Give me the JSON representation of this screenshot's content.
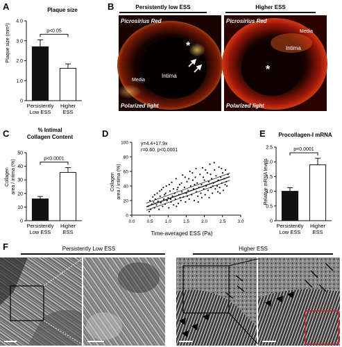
{
  "panels": {
    "A": {
      "letter": "A",
      "title": "Plaque size",
      "ylabel": "Plaque size (mm²)",
      "pvalue": "p<0.05",
      "chart_data": {
        "type": "bar",
        "categories": [
          "Persistently Low ESS",
          "Higher ESS"
        ],
        "category_lines": [
          [
            "Persistently",
            "Low ESS"
          ],
          [
            "Higher",
            "ESS"
          ]
        ],
        "values": [
          2.7,
          1.62
        ],
        "errors": [
          0.35,
          0.22
        ],
        "ylim": [
          0,
          4
        ],
        "yticks": [
          "0",
          "1.0",
          "2.0",
          "3.0",
          "4.0"
        ],
        "colors": [
          "#111111",
          "#ffffff"
        ]
      }
    },
    "B": {
      "letter": "B",
      "headers": [
        "Persistently low ESS",
        "Higher ESS"
      ],
      "left": {
        "stain": "Picrosirius Red",
        "light": "Polarized light",
        "media": "Media",
        "intima": "Intima",
        "star": "*"
      },
      "right": {
        "stain": "Picrosirius Red",
        "light": "Polarized light",
        "media": "Media",
        "intima": "Intima",
        "star": "*"
      }
    },
    "C": {
      "letter": "C",
      "title_lines": [
        "% Intimal",
        "Collagen Content"
      ],
      "ylabel_lines": [
        "Collagen",
        "area / intima (%)"
      ],
      "pvalue": "p<0.0001",
      "chart_data": {
        "type": "bar",
        "categories": [
          "Persistently Low ESS",
          "Higher ESS"
        ],
        "category_lines": [
          [
            "Persistently",
            "Low ESS"
          ],
          [
            "Higher",
            "ESS"
          ]
        ],
        "values": [
          16,
          35.5
        ],
        "errors": [
          1.8,
          3.5
        ],
        "ylim": [
          0,
          50
        ],
        "yticks": [
          "0",
          "10",
          "20",
          "30",
          "40",
          "50"
        ],
        "colors": [
          "#111111",
          "#ffffff"
        ]
      }
    },
    "D": {
      "letter": "D",
      "equation": "y=4.4+17.9x",
      "stats": "r=0.60, p<0.0001",
      "ylabel_lines": [
        "Collagen",
        "area / intima (%)"
      ],
      "xlabel": "Time-averaged ESS (Pa)",
      "chart_data": {
        "type": "scatter",
        "xlim": [
          0,
          3.0
        ],
        "ylim": [
          0,
          100
        ],
        "xticks": [
          "0.0",
          "0.5",
          "1.0",
          "1.5",
          "2.0",
          "2.5",
          "3.0"
        ],
        "yticks": [
          "0",
          "20",
          "40",
          "60",
          "80",
          "100"
        ],
        "regression": {
          "intercept": 4.4,
          "slope": 17.9
        },
        "points": [
          [
            0.45,
            12
          ],
          [
            0.5,
            20
          ],
          [
            0.52,
            8
          ],
          [
            0.55,
            15
          ],
          [
            0.58,
            25
          ],
          [
            0.6,
            18
          ],
          [
            0.62,
            10
          ],
          [
            0.65,
            22
          ],
          [
            0.68,
            14
          ],
          [
            0.7,
            30
          ],
          [
            0.72,
            19
          ],
          [
            0.75,
            8
          ],
          [
            0.78,
            26
          ],
          [
            0.8,
            17
          ],
          [
            0.82,
            35
          ],
          [
            0.85,
            12
          ],
          [
            0.88,
            22
          ],
          [
            0.9,
            28
          ],
          [
            0.92,
            15
          ],
          [
            0.95,
            40
          ],
          [
            0.97,
            20
          ],
          [
            1.0,
            24
          ],
          [
            1.02,
            10
          ],
          [
            1.05,
            33
          ],
          [
            1.08,
            18
          ],
          [
            1.1,
            45
          ],
          [
            1.12,
            26
          ],
          [
            1.15,
            14
          ],
          [
            1.18,
            30
          ],
          [
            1.2,
            22
          ],
          [
            1.22,
            50
          ],
          [
            1.25,
            35
          ],
          [
            1.28,
            16
          ],
          [
            1.3,
            28
          ],
          [
            1.32,
            42
          ],
          [
            1.35,
            20
          ],
          [
            1.38,
            32
          ],
          [
            1.4,
            55
          ],
          [
            1.42,
            25
          ],
          [
            1.45,
            38
          ],
          [
            1.48,
            18
          ],
          [
            1.5,
            30
          ],
          [
            1.52,
            46
          ],
          [
            1.55,
            34
          ],
          [
            1.58,
            22
          ],
          [
            1.6,
            60
          ],
          [
            1.62,
            40
          ],
          [
            1.65,
            28
          ],
          [
            1.68,
            48
          ],
          [
            1.7,
            36
          ],
          [
            1.72,
            20
          ],
          [
            1.75,
            52
          ],
          [
            1.78,
            32
          ],
          [
            1.8,
            44
          ],
          [
            1.82,
            26
          ],
          [
            1.85,
            38
          ],
          [
            1.88,
            56
          ],
          [
            1.9,
            30
          ],
          [
            1.92,
            42
          ],
          [
            1.95,
            65
          ],
          [
            1.98,
            36
          ],
          [
            2.0,
            48
          ],
          [
            2.02,
            28
          ],
          [
            2.05,
            40
          ],
          [
            2.08,
            58
          ],
          [
            2.1,
            34
          ],
          [
            2.12,
            46
          ],
          [
            2.15,
            70
          ],
          [
            2.18,
            38
          ],
          [
            2.2,
            50
          ],
          [
            2.22,
            30
          ],
          [
            2.25,
            44
          ],
          [
            2.28,
            62
          ],
          [
            2.3,
            36
          ],
          [
            2.32,
            54
          ],
          [
            2.35,
            40
          ],
          [
            2.38,
            48
          ],
          [
            2.4,
            66
          ],
          [
            2.42,
            38
          ],
          [
            2.45,
            52
          ],
          [
            2.48,
            44
          ],
          [
            2.5,
            58
          ],
          [
            2.52,
            34
          ],
          [
            2.55,
            50
          ],
          [
            2.58,
            62
          ],
          [
            2.6,
            46
          ],
          [
            2.62,
            40
          ],
          [
            2.65,
            56
          ],
          [
            0.48,
            5
          ],
          [
            0.63,
            28
          ],
          [
            0.77,
            33
          ],
          [
            0.93,
            30
          ],
          [
            1.07,
            22
          ],
          [
            1.23,
            12
          ],
          [
            1.37,
            44
          ],
          [
            1.53,
            26
          ],
          [
            1.67,
            58
          ],
          [
            1.83,
            18
          ],
          [
            1.97,
            52
          ],
          [
            2.13,
            24
          ],
          [
            2.27,
            72
          ],
          [
            2.43,
            30
          ],
          [
            0.87,
            38
          ],
          [
            1.03,
            42
          ],
          [
            1.27,
            38
          ],
          [
            1.47,
            52
          ],
          [
            1.73,
            42
          ],
          [
            1.93,
            24
          ],
          [
            2.17,
            56
          ],
          [
            2.37,
            32
          ],
          [
            1.15,
            36
          ],
          [
            1.33,
            24
          ],
          [
            1.57,
            50
          ],
          [
            1.77,
            64
          ],
          [
            2.03,
            62
          ],
          [
            2.23,
            40
          ],
          [
            2.47,
            64
          ],
          [
            2.57,
            42
          ]
        ]
      }
    },
    "E": {
      "letter": "E",
      "title": "Procollagen-I mRNA",
      "ylabel": "Relative mRNA levels",
      "pvalue": "p<0.0001",
      "chart_data": {
        "type": "bar",
        "categories": [
          "Persistently Low ESS",
          "Higher ESS"
        ],
        "category_lines": [
          [
            "Persistently",
            "Low ESS"
          ],
          [
            "Higher",
            "ESS"
          ]
        ],
        "values": [
          1.0,
          1.9
        ],
        "errors": [
          0.12,
          0.22
        ],
        "ylim": [
          0,
          2.5
        ],
        "yticks": [
          "0",
          "0.5",
          "1.0",
          "1.5",
          "2.0",
          "2.5"
        ],
        "colors": [
          "#111111",
          "#ffffff"
        ]
      }
    },
    "F": {
      "letter": "F",
      "headers": [
        "Persistently Low ESS",
        "Higher ESS"
      ]
    }
  }
}
